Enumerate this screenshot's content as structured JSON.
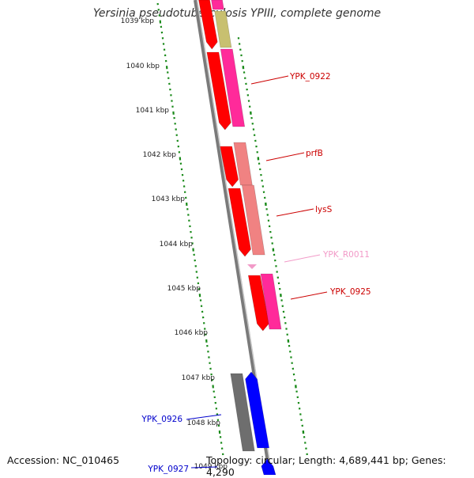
{
  "title": "Yersinia pseudotuberculosis YPIII, complete genome",
  "accession": "Accession: NC_010465",
  "summary": "Topology: circular; Length: 4,689,441 bp; Genes: 4,290",
  "colors": {
    "backbone": "#7a7a7a",
    "tick": "#1a8a1a",
    "cds_red": "#ff0000",
    "cds_pink": "#ff2a9a",
    "cds_salmon": "#f08282",
    "cds_olive": "#c8c070",
    "trna": "#f29ac8",
    "cds_gray": "#6e6e6e",
    "cds_blue": "#0000ff",
    "label_red": "#cc0000",
    "label_pink": "#f29ac8",
    "label_blue": "#0000cc"
  },
  "scale_labels": [
    "1039 kbp",
    "1040 kbp",
    "1041 kbp",
    "1042 kbp",
    "1043 kbp",
    "1044 kbp",
    "1045 kbp",
    "1046 kbp",
    "1047 kbp",
    "1048 kbp",
    "1049 kbp"
  ],
  "feature_labels": [
    {
      "text": "YPK_0922",
      "color": "label_red"
    },
    {
      "text": "prfB",
      "color": "label_red"
    },
    {
      "text": "lysS",
      "color": "label_red"
    },
    {
      "text": "YPK_R0011",
      "color": "label_pink"
    },
    {
      "text": "YPK_0925",
      "color": "label_red"
    },
    {
      "text": "YPK_0926",
      "color": "label_blue"
    },
    {
      "text": "YPK_0927",
      "color": "label_blue"
    }
  ]
}
